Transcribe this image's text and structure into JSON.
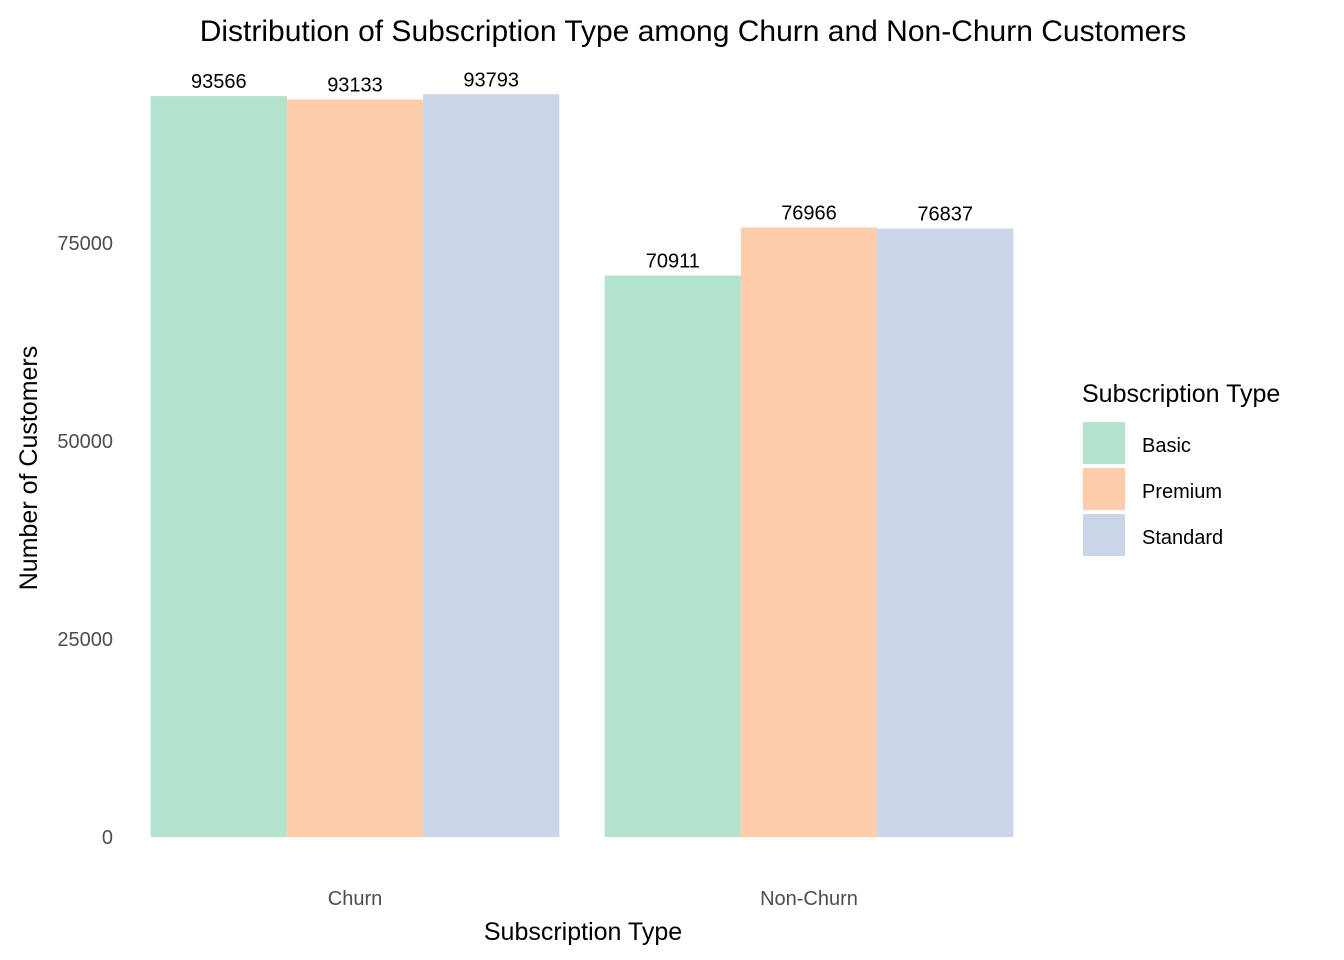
{
  "chart_data": {
    "type": "bar",
    "title": "Distribution of Subscription Type among Churn and Non-Churn Customers",
    "xlabel": "Subscription Type",
    "ylabel": "Number of Customers",
    "categories": [
      "Churn",
      "Non-Churn"
    ],
    "series": [
      {
        "name": "Basic",
        "color": "#b3e2cd",
        "values": [
          93566,
          70911
        ]
      },
      {
        "name": "Premium",
        "color": "#fdcdac",
        "values": [
          93133,
          76966
        ]
      },
      {
        "name": "Standard",
        "color": "#cbd5e8",
        "values": [
          93793,
          76837
        ]
      }
    ],
    "yticks": [
      0,
      25000,
      50000,
      75000
    ],
    "ylim": [
      0,
      98500
    ],
    "grid": false,
    "legend": {
      "title": "Subscription Type",
      "position": "right"
    }
  }
}
